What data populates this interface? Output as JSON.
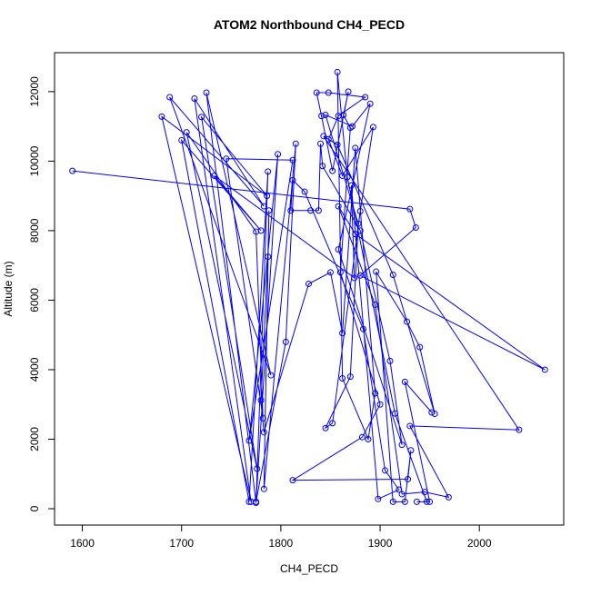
{
  "chart_data": {
    "type": "line",
    "title": "ATOM2 Northbound CH4_PECD",
    "x_label": "CH4_PECD",
    "y_label": "Altitude (m)",
    "markers": true,
    "color": "#0000ff",
    "xlim": [
      1572,
      2085
    ],
    "ylim": [
      -470,
      13120
    ],
    "xticks": [
      1600,
      1700,
      1800,
      1900,
      2000
    ],
    "yticks": [
      0,
      2000,
      4000,
      6000,
      8000,
      10000,
      12000
    ],
    "x": [
      1590,
      1930,
      1936,
      1880,
      2066,
      1875,
      1858,
      1895,
      1922,
      1945,
      1969,
      1930,
      2040,
      1843,
      1857,
      1913,
      1955,
      1940,
      1927,
      1896,
      1913,
      1925,
      1931,
      1928,
      1812,
      1882,
      1900,
      1860,
      1870,
      1863,
      1868,
      1852,
      1841,
      1836,
      1848,
      1885,
      1858,
      1848,
      1862,
      1893,
      1880,
      1852,
      1845,
      1870,
      1878,
      1845,
      1872,
      1890,
      1858,
      1922,
      1910,
      1880,
      1842,
      1840,
      1838,
      1830,
      1810,
      1812,
      1824,
      1883,
      1905,
      1919,
      1898,
      1871,
      1874,
      1733,
      1780,
      1700,
      1768,
      1787,
      1775,
      1725,
      1790,
      1688,
      1783,
      1713,
      1770,
      1680,
      1786,
      1720,
      1776,
      1705,
      1775,
      1782,
      1745,
      1812,
      1768,
      1797,
      1775,
      1805,
      1815,
      1783,
      1788,
      1787,
      1780,
      1783,
      1828,
      1850,
      1862,
      1875,
      1895,
      1888,
      1862,
      1857,
      1867,
      1915,
      1947,
      1937,
      1950,
      1925,
      1952
    ],
    "values": [
      9720,
      8620,
      8090,
      6710,
      4000,
      7900,
      8700,
      5870,
      420,
      480,
      330,
      2380,
      2270,
      10720,
      10470,
      6730,
      2730,
      4650,
      5380,
      6820,
      200,
      200,
      1680,
      850,
      820,
      2060,
      3000,
      6800,
      10960,
      11330,
      12000,
      9720,
      11300,
      11970,
      11970,
      11840,
      11300,
      10630,
      9580,
      10980,
      8560,
      2460,
      2320,
      3800,
      8200,
      11330,
      11000,
      11650,
      7460,
      1840,
      4250,
      8000,
      9860,
      10500,
      8580,
      8580,
      8580,
      9450,
      9120,
      5170,
      1100,
      550,
      280,
      9300,
      6640,
      9580,
      8000,
      10600,
      200,
      9700,
      170,
      11970,
      3840,
      11840,
      8700,
      11800,
      200,
      11280,
      9000,
      11270,
      1150,
      10830,
      7970,
      2600,
      10070,
      10030,
      1960,
      10200,
      200,
      4800,
      10500,
      570,
      8580,
      7250,
      3120,
      2200,
      6470,
      6800,
      5050,
      10380,
      3320,
      2000,
      3750,
      12560,
      9540,
      2740,
      200,
      200,
      200,
      3650,
      2770
    ]
  }
}
